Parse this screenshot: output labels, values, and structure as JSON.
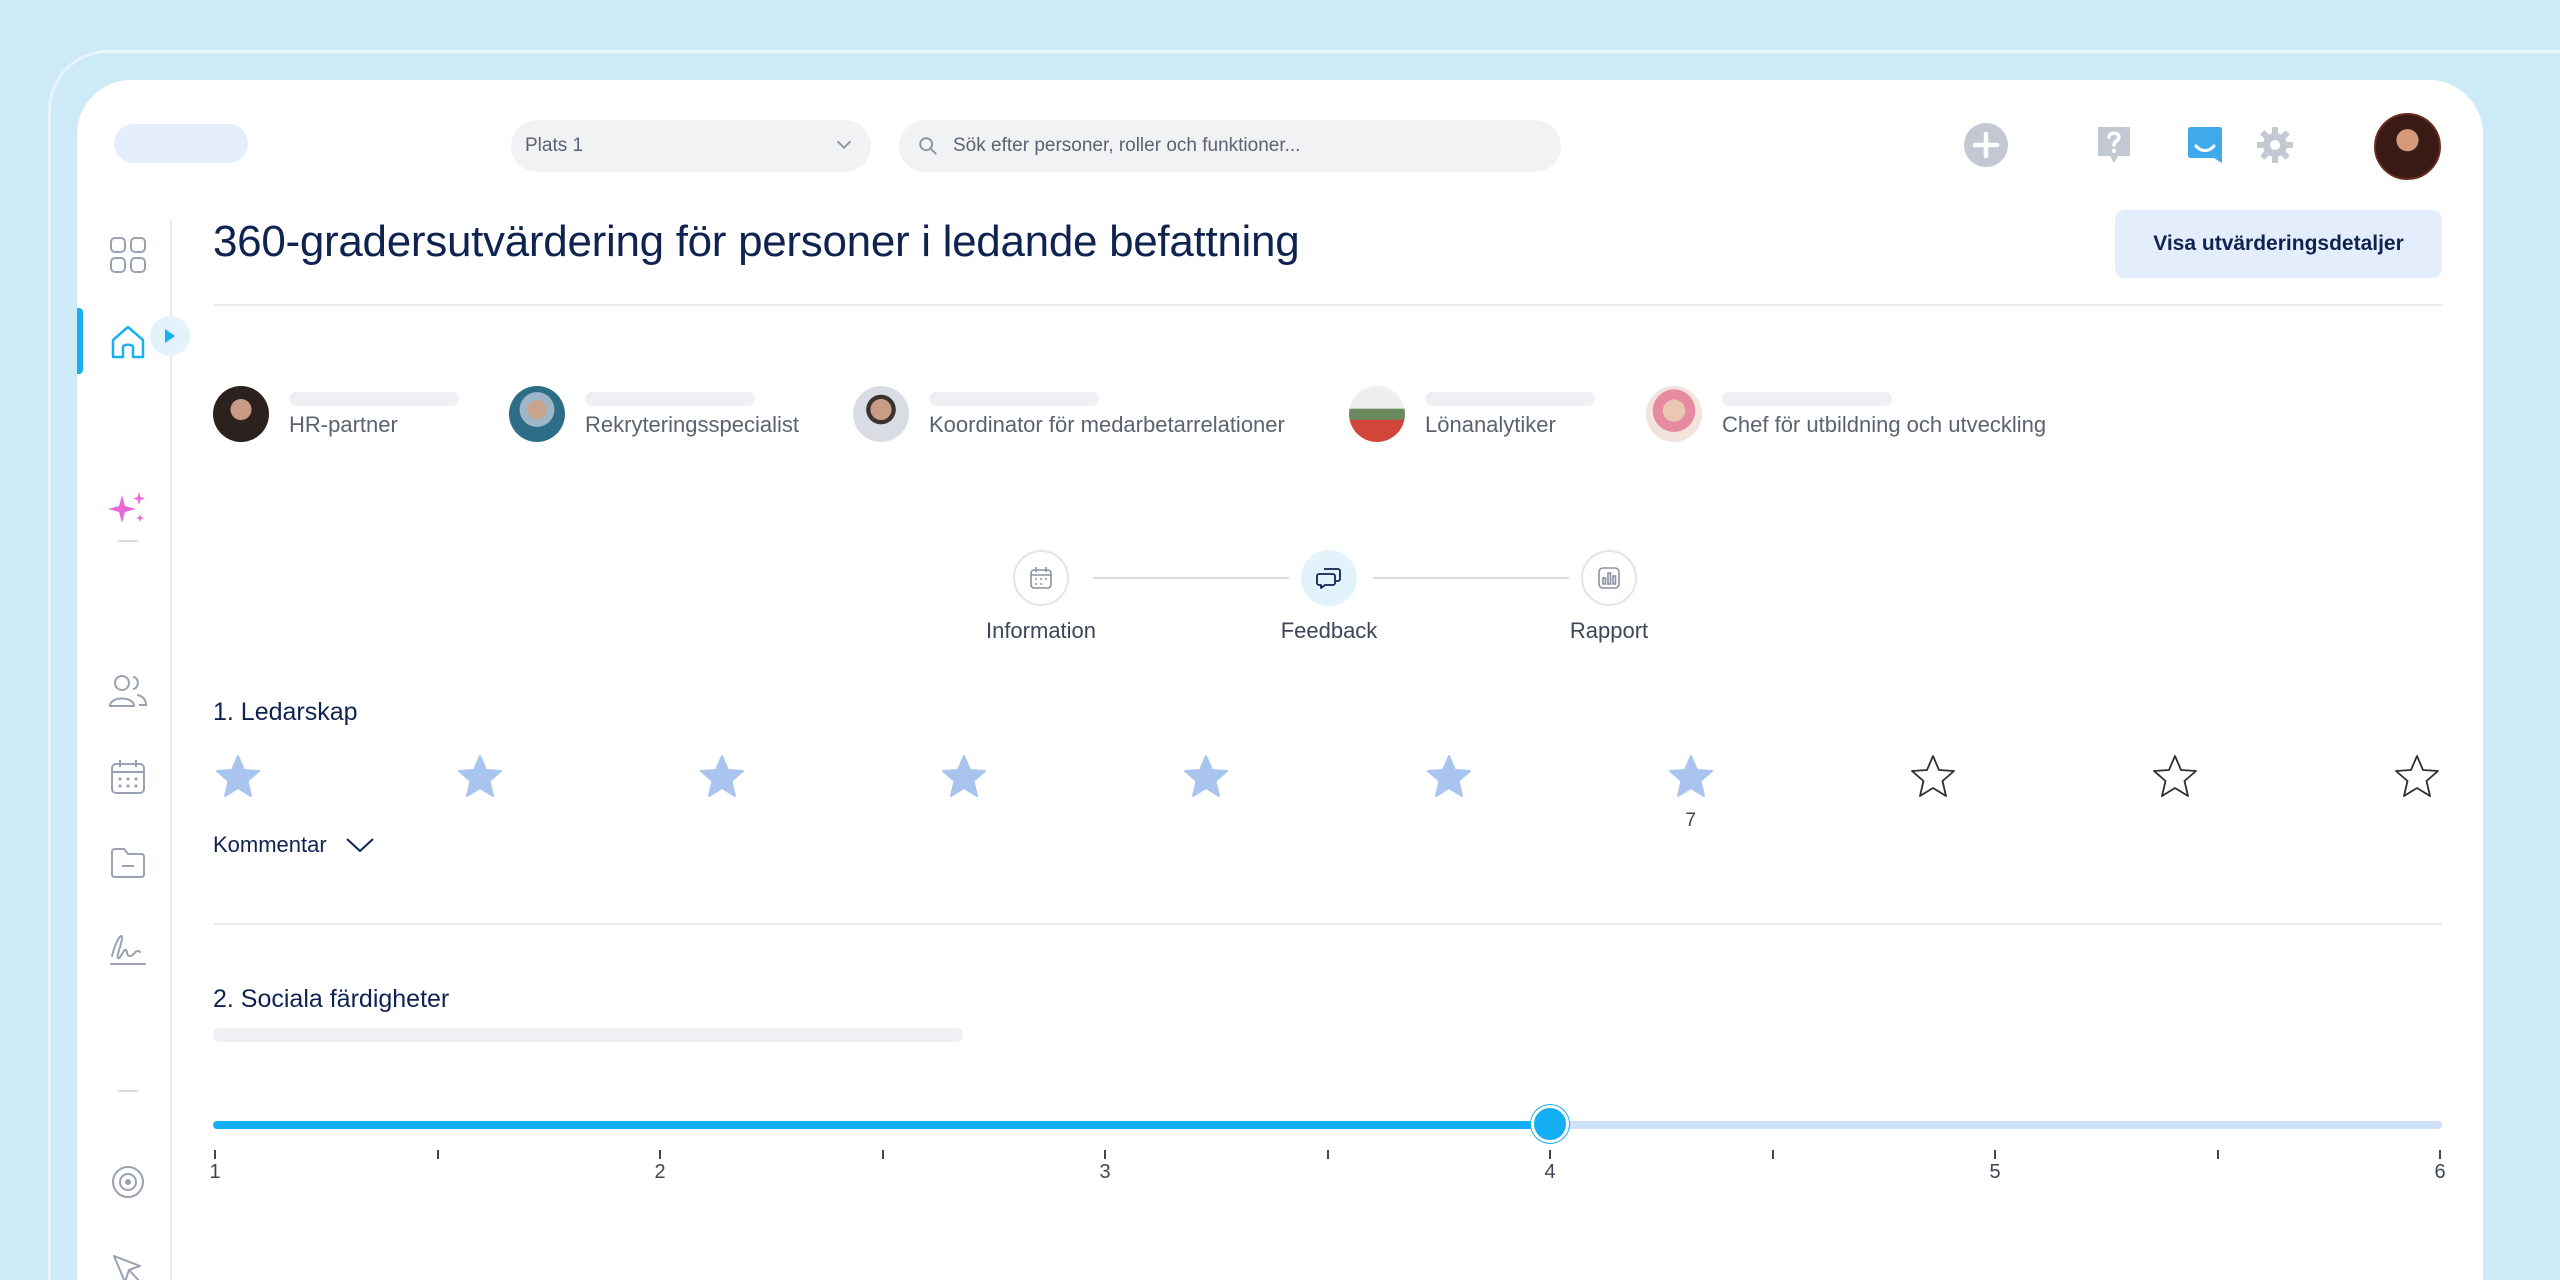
{
  "header": {
    "location_value": "Plats 1",
    "search_placeholder": "Sök efter personer, roller och funktioner..."
  },
  "page": {
    "title": "360-gradersutvärdering för personer i ledande befattning",
    "details_button": "Visa utvärderingsdetaljer"
  },
  "roles": [
    {
      "label": "HR-partner"
    },
    {
      "label": "Rekryteringsspecialist"
    },
    {
      "label": "Koordinator för medarbetarrelationer"
    },
    {
      "label": "Lönanalytiker"
    },
    {
      "label": "Chef för utbildning och utveckling"
    }
  ],
  "steps": [
    {
      "label": "Information"
    },
    {
      "label": "Feedback"
    },
    {
      "label": "Rapport"
    }
  ],
  "questions": {
    "q1": {
      "title": "1. Ledarskap",
      "rating": 7,
      "rating_label": "7",
      "max": 10,
      "comment_label": "Kommentar"
    },
    "q2": {
      "title": "2. Sociala färdigheter",
      "slider_value": 4,
      "slider_min": 1,
      "slider_max": 6,
      "tick_labels": [
        "1",
        "2",
        "3",
        "4",
        "5",
        "6"
      ]
    }
  },
  "colors": {
    "accent": "#14aef2",
    "star_filled": "#a8c4ef",
    "title": "#0f2350"
  }
}
